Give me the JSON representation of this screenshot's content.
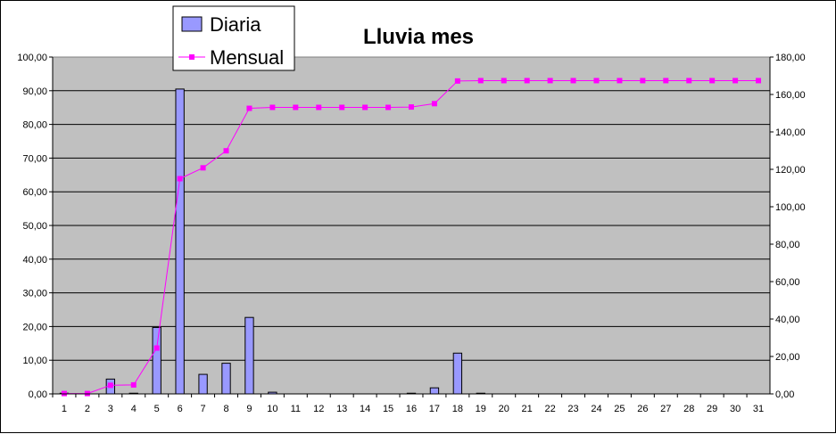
{
  "chart_data": {
    "type": "bar",
    "title": "Lluvia mes",
    "categories": [
      "1",
      "2",
      "3",
      "4",
      "5",
      "6",
      "7",
      "8",
      "9",
      "10",
      "11",
      "12",
      "13",
      "14",
      "15",
      "16",
      "17",
      "18",
      "19",
      "20",
      "21",
      "22",
      "23",
      "24",
      "25",
      "26",
      "27",
      "28",
      "29",
      "30",
      "31"
    ],
    "series": [
      {
        "name": "Diaria",
        "type": "bar",
        "axis": "left",
        "color": "#9999FF",
        "values": [
          0.2,
          0,
          4.4,
          0.2,
          19.7,
          90.5,
          5.8,
          9.1,
          22.7,
          0.5,
          0,
          0,
          0,
          0,
          0,
          0.2,
          1.8,
          12.1,
          0.2,
          0,
          0,
          0,
          0,
          0,
          0,
          0,
          0,
          0,
          0,
          0,
          0
        ]
      },
      {
        "name": "Mensual",
        "type": "line",
        "axis": "right",
        "color": "#FF00FF",
        "values": [
          0.2,
          0.2,
          4.6,
          4.8,
          24.5,
          115.0,
          120.8,
          129.9,
          152.6,
          153.1,
          153.1,
          153.1,
          153.1,
          153.1,
          153.1,
          153.3,
          155.1,
          167.2,
          167.4,
          167.4,
          167.4,
          167.4,
          167.4,
          167.4,
          167.4,
          167.4,
          167.4,
          167.4,
          167.4,
          167.4,
          167.4
        ]
      }
    ],
    "ylim": [
      0,
      100
    ],
    "y2lim": [
      0,
      180
    ],
    "yticks": [
      "0,00",
      "10,00",
      "20,00",
      "30,00",
      "40,00",
      "50,00",
      "60,00",
      "70,00",
      "80,00",
      "90,00",
      "100,00"
    ],
    "y2ticks": [
      "0,00",
      "20,00",
      "40,00",
      "60,00",
      "80,00",
      "100,00",
      "120,00",
      "140,00",
      "160,00",
      "180,00"
    ],
    "grid": true,
    "plot_background": "#C0C0C0",
    "legend_position": "top-left"
  }
}
